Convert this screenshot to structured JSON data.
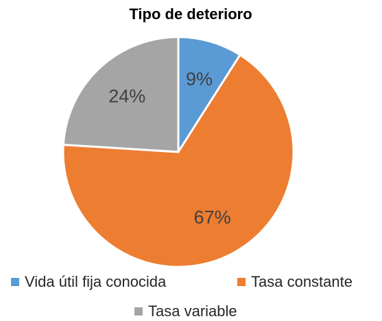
{
  "chart_data": {
    "type": "pie",
    "title": "Tipo de deterioro",
    "categories": [
      "Vida útil fija conocida",
      "Tasa constante",
      "Tasa variable"
    ],
    "values": [
      9,
      67,
      24
    ],
    "value_labels": [
      "9%",
      "67%",
      "24%"
    ],
    "colors": [
      "#5b9bd5",
      "#ed7d31",
      "#a5a5a5"
    ],
    "legend": "bottom"
  }
}
